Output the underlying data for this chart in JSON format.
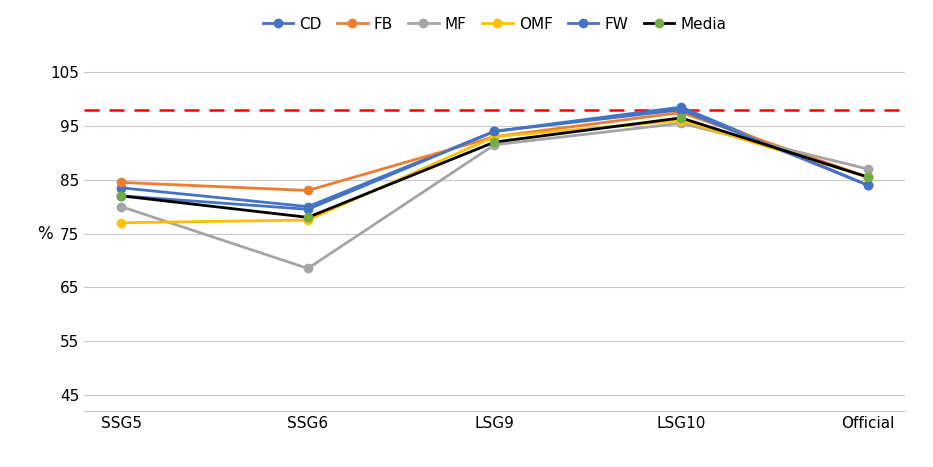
{
  "categories": [
    "SSG5",
    "SSG6",
    "LSG9",
    "LSG10",
    "Official"
  ],
  "series": {
    "CD": [
      83.5,
      80.0,
      94.0,
      98.5,
      84.0
    ],
    "FB": [
      84.5,
      83.0,
      93.0,
      97.5,
      85.5
    ],
    "MF": [
      80.0,
      68.5,
      91.5,
      95.5,
      87.0
    ],
    "OMF": [
      77.0,
      77.5,
      93.0,
      96.0,
      85.5
    ],
    "FW": [
      82.0,
      79.5,
      94.0,
      98.0,
      84.0
    ],
    "Media": [
      82.0,
      78.0,
      92.0,
      96.5,
      85.5
    ]
  },
  "colors": {
    "CD": "#4472C4",
    "FB": "#ED7D31",
    "MF": "#A5A5A5",
    "OMF": "#FFC000",
    "FW": "#4472C4",
    "Media": "#000000"
  },
  "marker_colors": {
    "CD": "#4472C4",
    "FB": "#ED7D31",
    "MF": "#A5A5A5",
    "OMF": "#FFC000",
    "FW": "#4472C4",
    "Media": "#70AD47"
  },
  "dashed_line_y": 98.0,
  "dashed_line_color": "#FF0000",
  "ylabel": "%",
  "yticks": [
    45,
    55,
    65,
    75,
    85,
    95,
    105
  ],
  "ylim": [
    42,
    108
  ],
  "background_color": "#FFFFFF",
  "grid_color": "#C8C8C8",
  "series_order": [
    "CD",
    "FB",
    "MF",
    "OMF",
    "FW",
    "Media"
  ],
  "legend_colors": {
    "CD": [
      "#4472C4",
      "#4472C4"
    ],
    "FB": [
      "#ED7D31",
      "#ED7D31"
    ],
    "MF": [
      "#A5A5A5",
      "#A5A5A5"
    ],
    "OMF": [
      "#FFC000",
      "#FFC000"
    ],
    "FW": [
      "#4472C4",
      "#4472C4"
    ],
    "Media": [
      "#000000",
      "#70AD47"
    ]
  }
}
